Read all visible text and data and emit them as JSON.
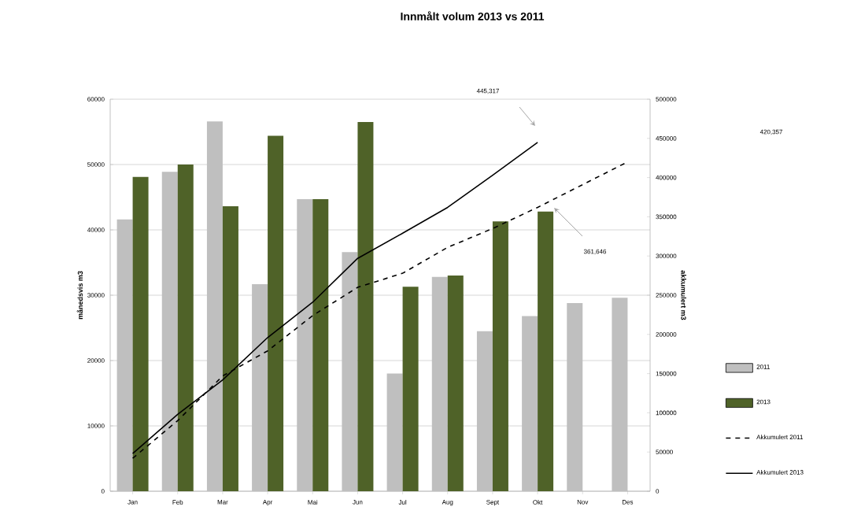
{
  "chart_data": {
    "type": "bar",
    "title": "Innmålt volum 2013 vs 2011",
    "categories": [
      "Jan",
      "Feb",
      "Mar",
      "Apr",
      "Mai",
      "Jun",
      "Jul",
      "Aug",
      "Sept",
      "Okt",
      "Nov",
      "Des"
    ],
    "ylabel": "månedsvis m3",
    "y2label": "akkumulert m3",
    "series": [
      {
        "name": "2011",
        "color": "#bfbfbf",
        "values": [
          41600,
          48900,
          56600,
          31700,
          44700,
          36600,
          18000,
          32800,
          24500,
          26800,
          28800,
          29600
        ]
      },
      {
        "name": "2013",
        "color": "#4f6228",
        "values": [
          48100,
          50000,
          43600,
          54400,
          44700,
          56500,
          31300,
          33000,
          41300,
          42800,
          null,
          null
        ]
      },
      {
        "name": "Akkumulert 2011",
        "type": "line",
        "axis": "y2",
        "color": "#000000",
        "line_style": "dashed",
        "values": [
          42000,
          90000,
          147000,
          179000,
          224000,
          260000,
          278000,
          311000,
          335000,
          362000,
          391000,
          420000
        ]
      },
      {
        "name": "Akkumulert 2013",
        "type": "line",
        "axis": "y2",
        "color": "#000000",
        "line_style": "solid",
        "values": [
          48000,
          98000,
          142000,
          196000,
          241000,
          297000,
          329000,
          362000,
          403000,
          445000,
          null,
          null
        ]
      }
    ],
    "ylim": [
      0,
      60000
    ],
    "yticks": [
      0,
      10000,
      20000,
      30000,
      40000,
      50000,
      60000
    ],
    "y2lim": [
      0,
      500000
    ],
    "y2ticks": [
      0,
      50000,
      100000,
      150000,
      200000,
      250000,
      300000,
      350000,
      400000,
      450000,
      500000
    ],
    "grid": "y",
    "legend": "right",
    "annotations": [
      "445,317",
      "420,357",
      "361,646"
    ]
  }
}
